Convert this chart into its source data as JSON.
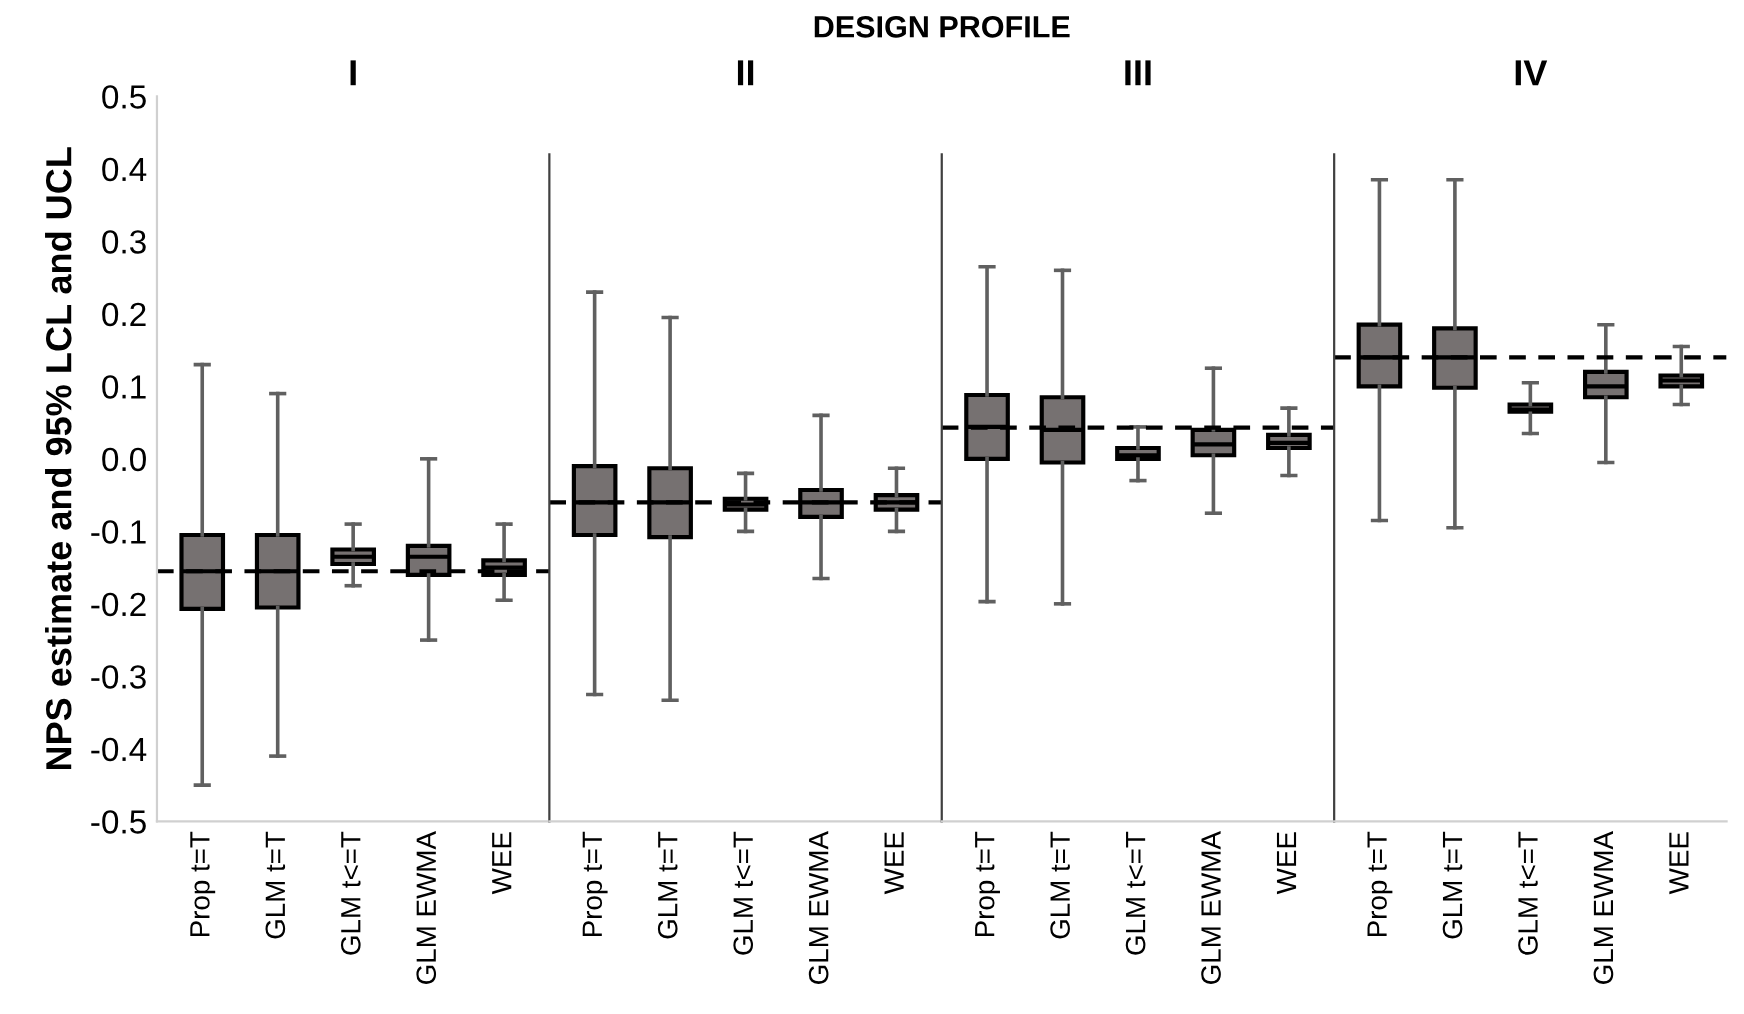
{
  "chart_data": [
    {
      "type": "box",
      "title": "I",
      "ylabel": "NPS estimate and 95% LCL and UCL",
      "annotations": [
        "DESIGN PROFILE"
      ],
      "categories": [
        "Prop t=T",
        "GLM t=T",
        "GLM t<=T",
        "GLM EWMA",
        "WEE"
      ],
      "color": "#767171",
      "ylim": [
        -0.5,
        0.5
      ],
      "yticks": [
        {
          "value": -0.5,
          "label": "-0.5"
        },
        {
          "value": -0.4,
          "label": "-0.4"
        },
        {
          "value": -0.3,
          "label": "-0.3"
        },
        {
          "value": -0.2,
          "label": "-0.2"
        },
        {
          "value": -0.1,
          "label": "-0.1"
        },
        {
          "value": 0,
          "label": "0.0"
        },
        {
          "value": 0.1,
          "label": "0.1"
        },
        {
          "value": 0.2,
          "label": "0.2"
        },
        {
          "value": 0.3,
          "label": "0.3"
        },
        {
          "value": 0.4,
          "label": "0.4"
        },
        {
          "value": 0.5,
          "label": "0.5"
        }
      ],
      "grid": false,
      "boxes": [
        {
          "low": -0.45,
          "q1": -0.207,
          "median": -0.155,
          "q3": -0.105,
          "high": 0.13
        },
        {
          "low": -0.41,
          "q1": -0.205,
          "median": -0.155,
          "q3": -0.105,
          "high": 0.09
        },
        {
          "low": -0.175,
          "q1": -0.145,
          "median": -0.135,
          "q3": -0.125,
          "high": -0.09
        },
        {
          "low": -0.25,
          "q1": -0.16,
          "median": -0.135,
          "q3": -0.12,
          "high": 0.0
        },
        {
          "low": -0.195,
          "q1": -0.16,
          "median": -0.15,
          "q3": -0.14,
          "high": -0.09
        }
      ],
      "ref_lines": [
        {
          "axis": "y",
          "value": -0.155,
          "line_style": "dashed",
          "color": "#000000"
        }
      ]
    },
    {
      "type": "box",
      "title": "II",
      "categories": [
        "Prop t=T",
        "GLM t=T",
        "GLM t<=T",
        "GLM EWMA",
        "WEE"
      ],
      "color": "#767171",
      "ylim": [
        -0.5,
        0.5
      ],
      "tick_labels": "x",
      "grid": false,
      "boxes": [
        {
          "low": -0.325,
          "q1": -0.105,
          "median": -0.06,
          "q3": -0.01,
          "high": 0.23
        },
        {
          "low": -0.333,
          "q1": -0.108,
          "median": -0.06,
          "q3": -0.013,
          "high": 0.195
        },
        {
          "low": -0.1,
          "q1": -0.07,
          "median": -0.063,
          "q3": -0.055,
          "high": -0.02
        },
        {
          "low": -0.165,
          "q1": -0.08,
          "median": -0.06,
          "q3": -0.043,
          "high": 0.06
        },
        {
          "low": -0.1,
          "q1": -0.07,
          "median": -0.06,
          "q3": -0.05,
          "high": -0.013
        }
      ],
      "ref_lines": [
        {
          "axis": "y",
          "value": -0.06,
          "line_style": "dashed",
          "color": "#000000"
        }
      ]
    },
    {
      "type": "box",
      "title": "III",
      "categories": [
        "Prop t=T",
        "GLM t=T",
        "GLM t<=T",
        "GLM EWMA",
        "WEE"
      ],
      "color": "#767171",
      "ylim": [
        -0.5,
        0.5
      ],
      "tick_labels": "x",
      "grid": false,
      "boxes": [
        {
          "low": -0.197,
          "q1": 0.0,
          "median": 0.044,
          "q3": 0.088,
          "high": 0.265
        },
        {
          "low": -0.2,
          "q1": -0.005,
          "median": 0.04,
          "q3": 0.085,
          "high": 0.26
        },
        {
          "low": -0.03,
          "q1": 0.0,
          "median": 0.005,
          "q3": 0.015,
          "high": 0.044
        },
        {
          "low": -0.075,
          "q1": 0.005,
          "median": 0.02,
          "q3": 0.04,
          "high": 0.125
        },
        {
          "low": -0.023,
          "q1": 0.015,
          "median": 0.022,
          "q3": 0.033,
          "high": 0.07
        }
      ],
      "ref_lines": [
        {
          "axis": "y",
          "value": 0.043,
          "line_style": "dashed",
          "color": "#000000"
        }
      ]
    },
    {
      "type": "box",
      "title": "IV",
      "categories": [
        "Prop t=T",
        "GLM t=T",
        "GLM t<=T",
        "GLM EWMA",
        "WEE"
      ],
      "color": "#767171",
      "ylim": [
        -0.5,
        0.5
      ],
      "tick_labels": "x",
      "grid": false,
      "boxes": [
        {
          "low": -0.085,
          "q1": 0.1,
          "median": 0.14,
          "q3": 0.185,
          "high": 0.385
        },
        {
          "low": -0.095,
          "q1": 0.098,
          "median": 0.14,
          "q3": 0.18,
          "high": 0.385
        },
        {
          "low": 0.035,
          "q1": 0.065,
          "median": 0.068,
          "q3": 0.075,
          "high": 0.105
        },
        {
          "low": -0.005,
          "q1": 0.085,
          "median": 0.1,
          "q3": 0.12,
          "high": 0.185
        },
        {
          "low": 0.075,
          "q1": 0.1,
          "median": 0.108,
          "q3": 0.115,
          "high": 0.155
        }
      ],
      "ref_lines": [
        {
          "axis": "y",
          "value": 0.14,
          "line_style": "dashed",
          "color": "#000000"
        }
      ]
    }
  ]
}
